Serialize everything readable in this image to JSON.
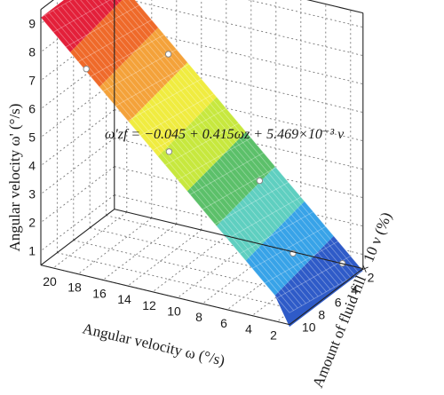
{
  "chart_data": {
    "type": "surface3d",
    "title": "",
    "zlabel": "Angular velocity ω' (°/s)",
    "xlabel": "Angular velocity ω (°/s)",
    "ylabel": "Amount of fluid fill × 10 ν (%)",
    "equation": "ω'zf = −0.045 + 0.415ωz + 5.469×10⁻³ ν",
    "x_ticks": [
      "20",
      "18",
      "16",
      "14",
      "12",
      "10",
      "8",
      "6",
      "4",
      "2"
    ],
    "y_ticks": [
      "10",
      "8",
      "6",
      "4",
      "2"
    ],
    "z_ticks": [
      "1",
      "2",
      "3",
      "4",
      "5",
      "6",
      "7",
      "8",
      "9"
    ],
    "xlim": [
      2,
      20
    ],
    "ylim": [
      1,
      10
    ],
    "zlim": [
      0.5,
      9.5
    ],
    "formula": {
      "intercept": -0.045,
      "coef_omega": 0.415,
      "coef_fill": 0.005469
    },
    "grid": true,
    "colormap": [
      "#2f5bc8",
      "#38a3e8",
      "#5fcfc0",
      "#5cc06a",
      "#c7e83e",
      "#f0ec40",
      "#f4a23a",
      "#ef6a2a",
      "#e3203a"
    ],
    "measured_points": [
      {
        "omega": 2,
        "fill": 2,
        "z": 0.8
      },
      {
        "omega": 4,
        "fill": 5,
        "z": 1.6
      },
      {
        "omega": 8,
        "fill": 3,
        "z": 3.3
      },
      {
        "omega": 12,
        "fill": 8,
        "z": 5.0
      },
      {
        "omega": 16,
        "fill": 2,
        "z": 6.7
      },
      {
        "omega": 18,
        "fill": 9,
        "z": 7.5
      }
    ]
  }
}
